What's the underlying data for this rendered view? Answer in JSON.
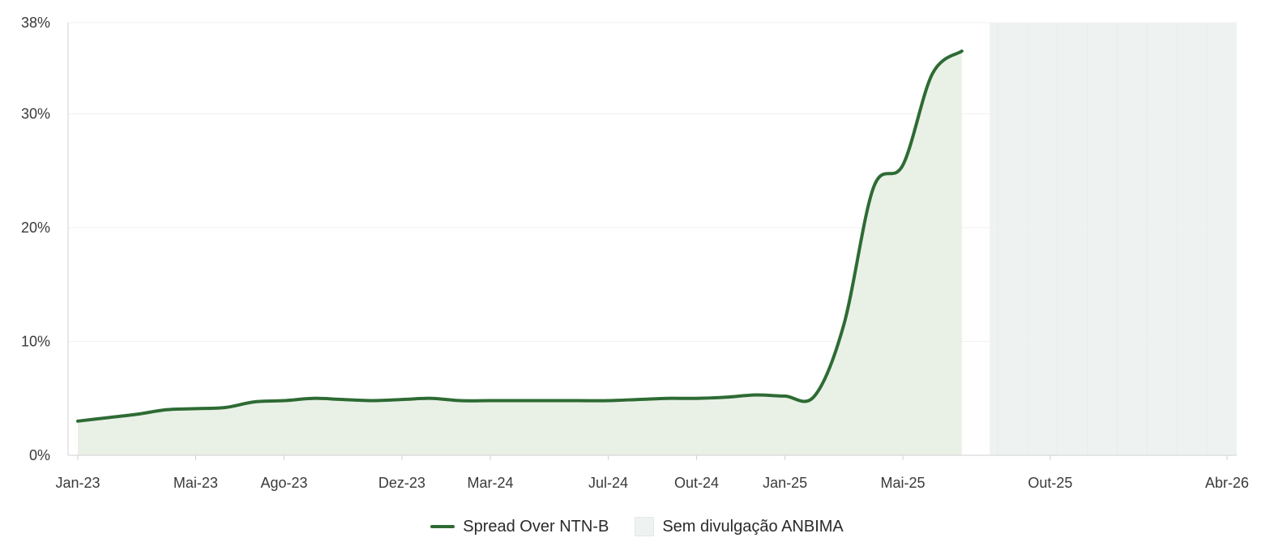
{
  "colors": {
    "line": "#2e6b34",
    "area": "#e9f1e7",
    "shade": "#eef3f2",
    "axis": "#d0d0d0",
    "grid": "#f1f1f1"
  },
  "legend": {
    "series_label": "Spread Over NTN-B",
    "shade_label": "Sem divulgação ANBIMA"
  },
  "chart_data": {
    "type": "area",
    "title": "",
    "xlabel": "",
    "ylabel": "",
    "y_ticks": [
      "0%",
      "10%",
      "20%",
      "30%",
      "38%"
    ],
    "y_tick_values": [
      0,
      10,
      20,
      30,
      38
    ],
    "ylim": [
      0,
      38
    ],
    "x_ticks": [
      "Jan-23",
      "Mai-23",
      "Ago-23",
      "Dez-23",
      "Mar-24",
      "Jul-24",
      "Out-24",
      "Jan-25",
      "Mai-25",
      "Out-25",
      "Abr-26"
    ],
    "x_tick_dates": [
      "2023-01",
      "2023-05",
      "2023-08",
      "2023-12",
      "2024-03",
      "2024-07",
      "2024-10",
      "2025-01",
      "2025-05",
      "2025-10",
      "2026-04"
    ],
    "xlim": [
      "2023-01",
      "2026-04"
    ],
    "grid": true,
    "legend_position": "bottom",
    "shaded_period": [
      "2025-08",
      "2026-04"
    ],
    "series": [
      {
        "name": "Spread Over NTN-B",
        "x": [
          "2023-01",
          "2023-02",
          "2023-03",
          "2023-04",
          "2023-05",
          "2023-06",
          "2023-07",
          "2023-08",
          "2023-09",
          "2023-10",
          "2023-11",
          "2023-12",
          "2024-01",
          "2024-02",
          "2024-03",
          "2024-04",
          "2024-05",
          "2024-06",
          "2024-07",
          "2024-08",
          "2024-09",
          "2024-10",
          "2024-11",
          "2024-12",
          "2025-01",
          "2025-02",
          "2025-03",
          "2025-04",
          "2025-05",
          "2025-06",
          "2025-07"
        ],
        "values": [
          3.0,
          3.3,
          3.6,
          4.0,
          4.1,
          4.2,
          4.7,
          4.8,
          5.0,
          4.9,
          4.8,
          4.9,
          5.0,
          4.8,
          4.8,
          4.8,
          4.8,
          4.8,
          4.8,
          4.9,
          5.0,
          5.0,
          5.1,
          5.3,
          5.2,
          5.2,
          11.5,
          23.5,
          25.5,
          33.5,
          35.5
        ]
      }
    ]
  }
}
